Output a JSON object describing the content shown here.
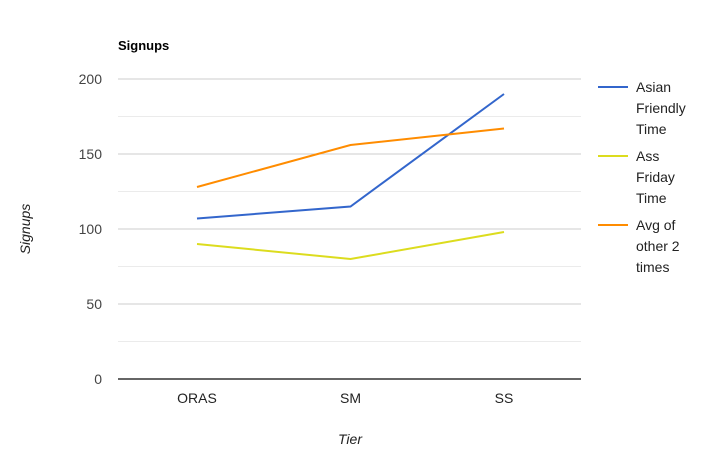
{
  "chart_data": {
    "type": "line",
    "title": "Signups",
    "xlabel": "Tier",
    "ylabel": "Signups",
    "categories": [
      "ORAS",
      "SM",
      "SS"
    ],
    "ylim": [
      0,
      200
    ],
    "yticks": [
      0,
      50,
      100,
      150,
      200
    ],
    "ytick_labels": [
      "0",
      "50",
      "100",
      "150",
      "200"
    ],
    "grid": true,
    "legend_position": "right",
    "series": [
      {
        "name": "Asian Friendly Time",
        "legend_lines": [
          "Asian",
          "Friendly",
          "Time"
        ],
        "color": "#3366cc",
        "values": [
          107,
          115,
          190
        ]
      },
      {
        "name": "Ass Friday Time",
        "legend_lines": [
          "Ass",
          "Friday",
          "Time"
        ],
        "color": "#dcdc1e",
        "values": [
          90,
          80,
          98
        ]
      },
      {
        "name": "Avg of other 2 times",
        "legend_lines": [
          "Avg of",
          "other 2",
          "times"
        ],
        "color": "#ff8c00",
        "values": [
          128,
          156,
          167
        ]
      }
    ]
  }
}
